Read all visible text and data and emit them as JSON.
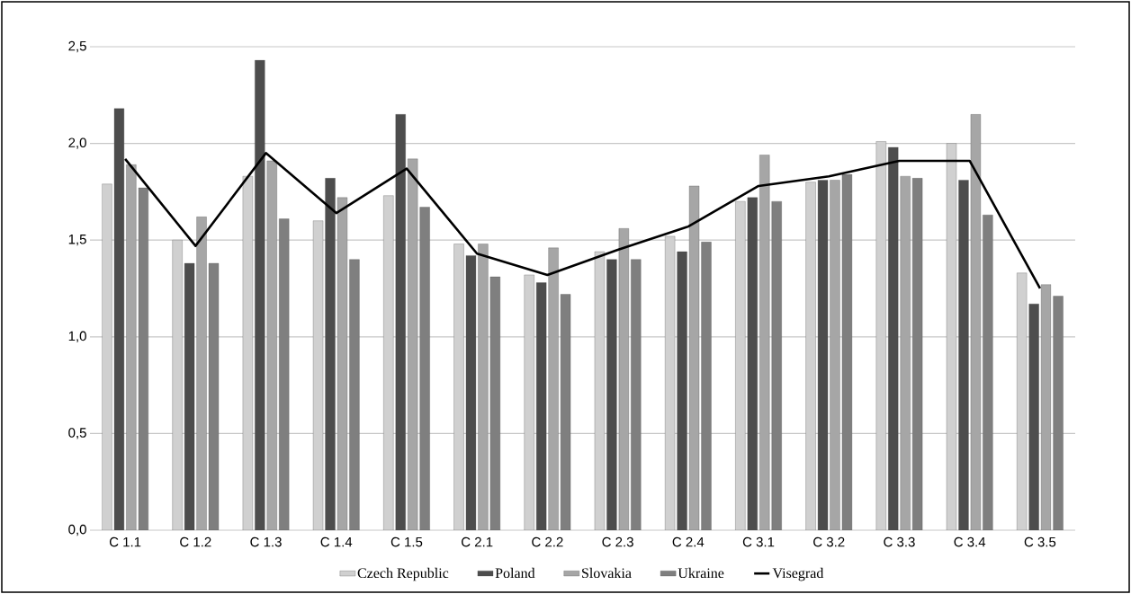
{
  "chart_data": {
    "type": "bar",
    "categories": [
      "C 1.1",
      "C 1.2",
      "C 1.3",
      "C 1.4",
      "C 1.5",
      "C 2.1",
      "C 2.2",
      "C 2.3",
      "C 2.4",
      "C 3.1",
      "C 3.2",
      "C 3.3",
      "C 3.4",
      "C 3.5"
    ],
    "series": [
      {
        "name": "Czech Republic",
        "color": "#d0d0d0",
        "values": [
          1.79,
          1.5,
          1.83,
          1.6,
          1.73,
          1.48,
          1.32,
          1.44,
          1.52,
          1.7,
          1.8,
          2.01,
          2.0,
          1.33
        ]
      },
      {
        "name": "Poland",
        "color": "#4d4d4d",
        "values": [
          2.18,
          1.38,
          2.43,
          1.82,
          2.15,
          1.42,
          1.28,
          1.4,
          1.44,
          1.72,
          1.81,
          1.98,
          1.81,
          1.17
        ]
      },
      {
        "name": "Slovakia",
        "color": "#a6a6a6",
        "values": [
          1.89,
          1.62,
          1.91,
          1.72,
          1.92,
          1.48,
          1.46,
          1.56,
          1.78,
          1.94,
          1.81,
          1.83,
          2.15,
          1.27
        ]
      },
      {
        "name": "Ukraine",
        "color": "#7f7f7f",
        "values": [
          1.77,
          1.38,
          1.61,
          1.4,
          1.67,
          1.31,
          1.22,
          1.4,
          1.49,
          1.7,
          1.84,
          1.82,
          1.63,
          1.21
        ]
      },
      {
        "name": "Visegrad",
        "color": "#000000",
        "type": "line",
        "values": [
          1.92,
          1.47,
          1.95,
          1.64,
          1.87,
          1.43,
          1.32,
          1.45,
          1.57,
          1.78,
          1.83,
          1.91,
          1.91,
          1.25
        ]
      }
    ],
    "ylim": [
      0,
      2.5
    ],
    "yticks": [
      {
        "value": 0,
        "label": "0,0"
      },
      {
        "value": 0.5,
        "label": "0,5"
      },
      {
        "value": 1.0,
        "label": "1,0"
      },
      {
        "value": 1.5,
        "label": "1,5"
      },
      {
        "value": 2.0,
        "label": "2,0"
      },
      {
        "value": 2.5,
        "label": "2,5"
      }
    ],
    "grid": "y",
    "legend": "bottom"
  }
}
